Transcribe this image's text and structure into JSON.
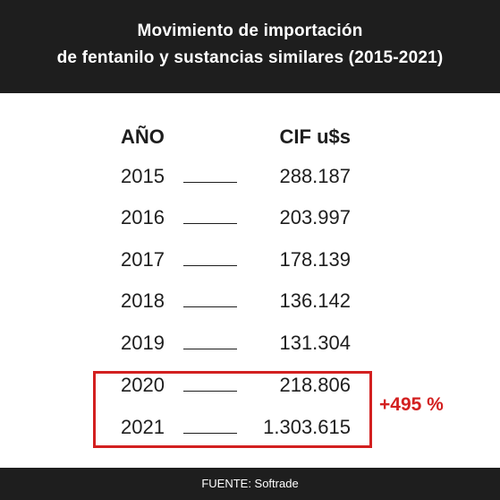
{
  "header": {
    "title_line1": "Movimiento de importación",
    "title_line2": "de fentanilo y sustancias similares (2015-2021)"
  },
  "chart_data": {
    "type": "table",
    "title": "Movimiento de importación de fentanilo y sustancias similares (2015-2021)",
    "columns": [
      "AÑO",
      "CIF u$s"
    ],
    "rows": [
      {
        "year": "2015",
        "cif": "288.187"
      },
      {
        "year": "2016",
        "cif": "203.997"
      },
      {
        "year": "2017",
        "cif": "178.139"
      },
      {
        "year": "2018",
        "cif": "136.142"
      },
      {
        "year": "2019",
        "cif": "131.304"
      },
      {
        "year": "2020",
        "cif": "218.806"
      },
      {
        "year": "2021",
        "cif": "1.303.615"
      }
    ],
    "highlighted_years": [
      "2020",
      "2021"
    ],
    "annotation": "+495 %"
  },
  "colors": {
    "background": "#1e1e1e",
    "panel": "#ffffff",
    "accent": "#d32020"
  },
  "footer": {
    "source": "FUENTE: Softrade"
  }
}
